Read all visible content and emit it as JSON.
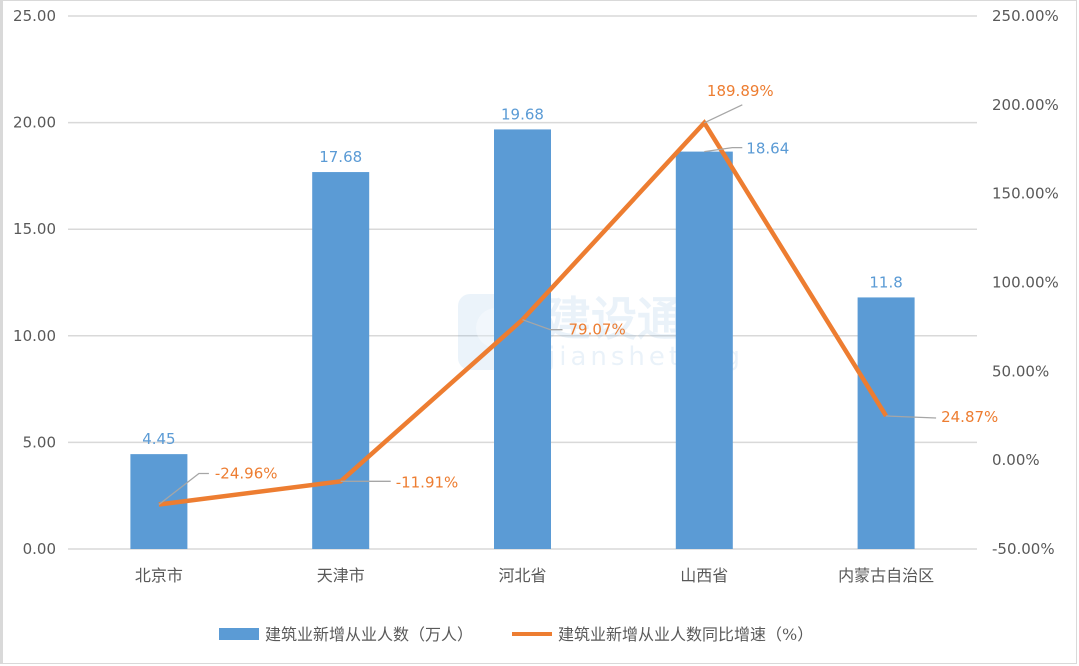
{
  "chart_data": {
    "type": "bar",
    "title": "",
    "categories": [
      "北京市",
      "天津市",
      "河北省",
      "山西省",
      "内蒙古自治区"
    ],
    "series": [
      {
        "name": "建筑业新增从业人数（万人）",
        "type": "bar",
        "axis": "left",
        "color": "#5b9bd5",
        "values": [
          4.45,
          17.68,
          19.68,
          18.64,
          11.8
        ],
        "labels": [
          "4.45",
          "17.68",
          "19.68",
          "18.64",
          "11.8"
        ]
      },
      {
        "name": "建筑业新增从业人数同比增速（%）",
        "type": "line",
        "axis": "right",
        "color": "#ed7d31",
        "values": [
          -24.96,
          -11.91,
          79.07,
          189.89,
          24.87
        ],
        "labels": [
          "-24.96%",
          "-11.91%",
          "79.07%",
          "189.89%",
          "24.87%"
        ]
      }
    ],
    "y_left": {
      "range": [
        0,
        25
      ],
      "ticks": [
        "0.00",
        "5.00",
        "10.00",
        "15.00",
        "20.00",
        "25.00"
      ]
    },
    "y_right": {
      "range": [
        -50,
        250
      ],
      "ticks": [
        "-50.00%",
        "0.00%",
        "50.00%",
        "100.00%",
        "150.00%",
        "200.00%",
        "250.00%"
      ]
    },
    "xlabel": "",
    "ylabel": "",
    "grid": true,
    "legend_position": "bottom"
  },
  "watermark": {
    "cn": "建设通",
    "en": "jianshetong"
  },
  "legend": {
    "bar": "建筑业新增从业人数（万人）",
    "line": "建筑业新增从业人数同比增速（%）"
  }
}
